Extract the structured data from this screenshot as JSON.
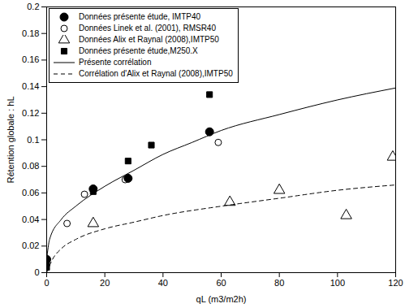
{
  "chart_data": {
    "type": "scatter",
    "x_label": "qL (m3/m2h)",
    "y_label": "Rétention globale : hL",
    "xlim": [
      0,
      120
    ],
    "xticks": [
      0,
      20,
      40,
      60,
      80,
      100,
      120
    ],
    "ylim": [
      0,
      0.2
    ],
    "yticks": [
      0,
      0.02,
      0.04,
      0.06,
      0.08,
      0.1,
      0.12,
      0.14,
      0.16,
      0.18,
      0.2
    ],
    "legend": "upper left",
    "series": [
      {
        "name": "Données présente étude, IMTP40",
        "type": "scatter",
        "marker": "filled_circle",
        "color": "#000000",
        "x": [
          0,
          16,
          28,
          56
        ],
        "values": [
          0.01,
          0.063,
          0.071,
          0.106
        ]
      },
      {
        "name": "Données Linek et al. (2001), RMSR40",
        "type": "scatter",
        "marker": "open_circle",
        "color": "#000000",
        "x": [
          7,
          13,
          27,
          59
        ],
        "values": [
          0.037,
          0.059,
          0.07,
          0.098
        ]
      },
      {
        "name": "Données Alix et Raynal (2008),IMTP50",
        "type": "scatter",
        "marker": "open_triangle",
        "color": "#000000",
        "x": [
          16,
          63,
          80,
          103,
          119
        ],
        "values": [
          0.037,
          0.053,
          0.062,
          0.043,
          0.087
        ]
      },
      {
        "name": "Données présente étude,M250.X",
        "type": "scatter",
        "marker": "filled_square",
        "color": "#000000",
        "x": [
          0,
          0,
          16,
          28,
          36,
          56
        ],
        "values": [
          0.004,
          0.007,
          0.061,
          0.084,
          0.096,
          0.134
        ]
      },
      {
        "name": "Présente corrélation",
        "type": "line",
        "line_style": "solid",
        "color": "#000000",
        "x": [
          0,
          1,
          5,
          10,
          20,
          30,
          40,
          50,
          60,
          80,
          100,
          120
        ],
        "values": [
          0.01,
          0.025,
          0.04,
          0.05,
          0.065,
          0.077,
          0.089,
          0.098,
          0.107,
          0.119,
          0.13,
          0.139
        ]
      },
      {
        "name": "Corrélation d'Alix et Raynal (2008),IMTP50",
        "type": "line",
        "line_style": "dashed",
        "color": "#000000",
        "x": [
          0,
          2,
          5,
          10,
          20,
          30,
          40,
          60,
          80,
          100,
          120
        ],
        "values": [
          0.0,
          0.01,
          0.018,
          0.025,
          0.033,
          0.038,
          0.043,
          0.05,
          0.056,
          0.062,
          0.066
        ]
      }
    ]
  }
}
